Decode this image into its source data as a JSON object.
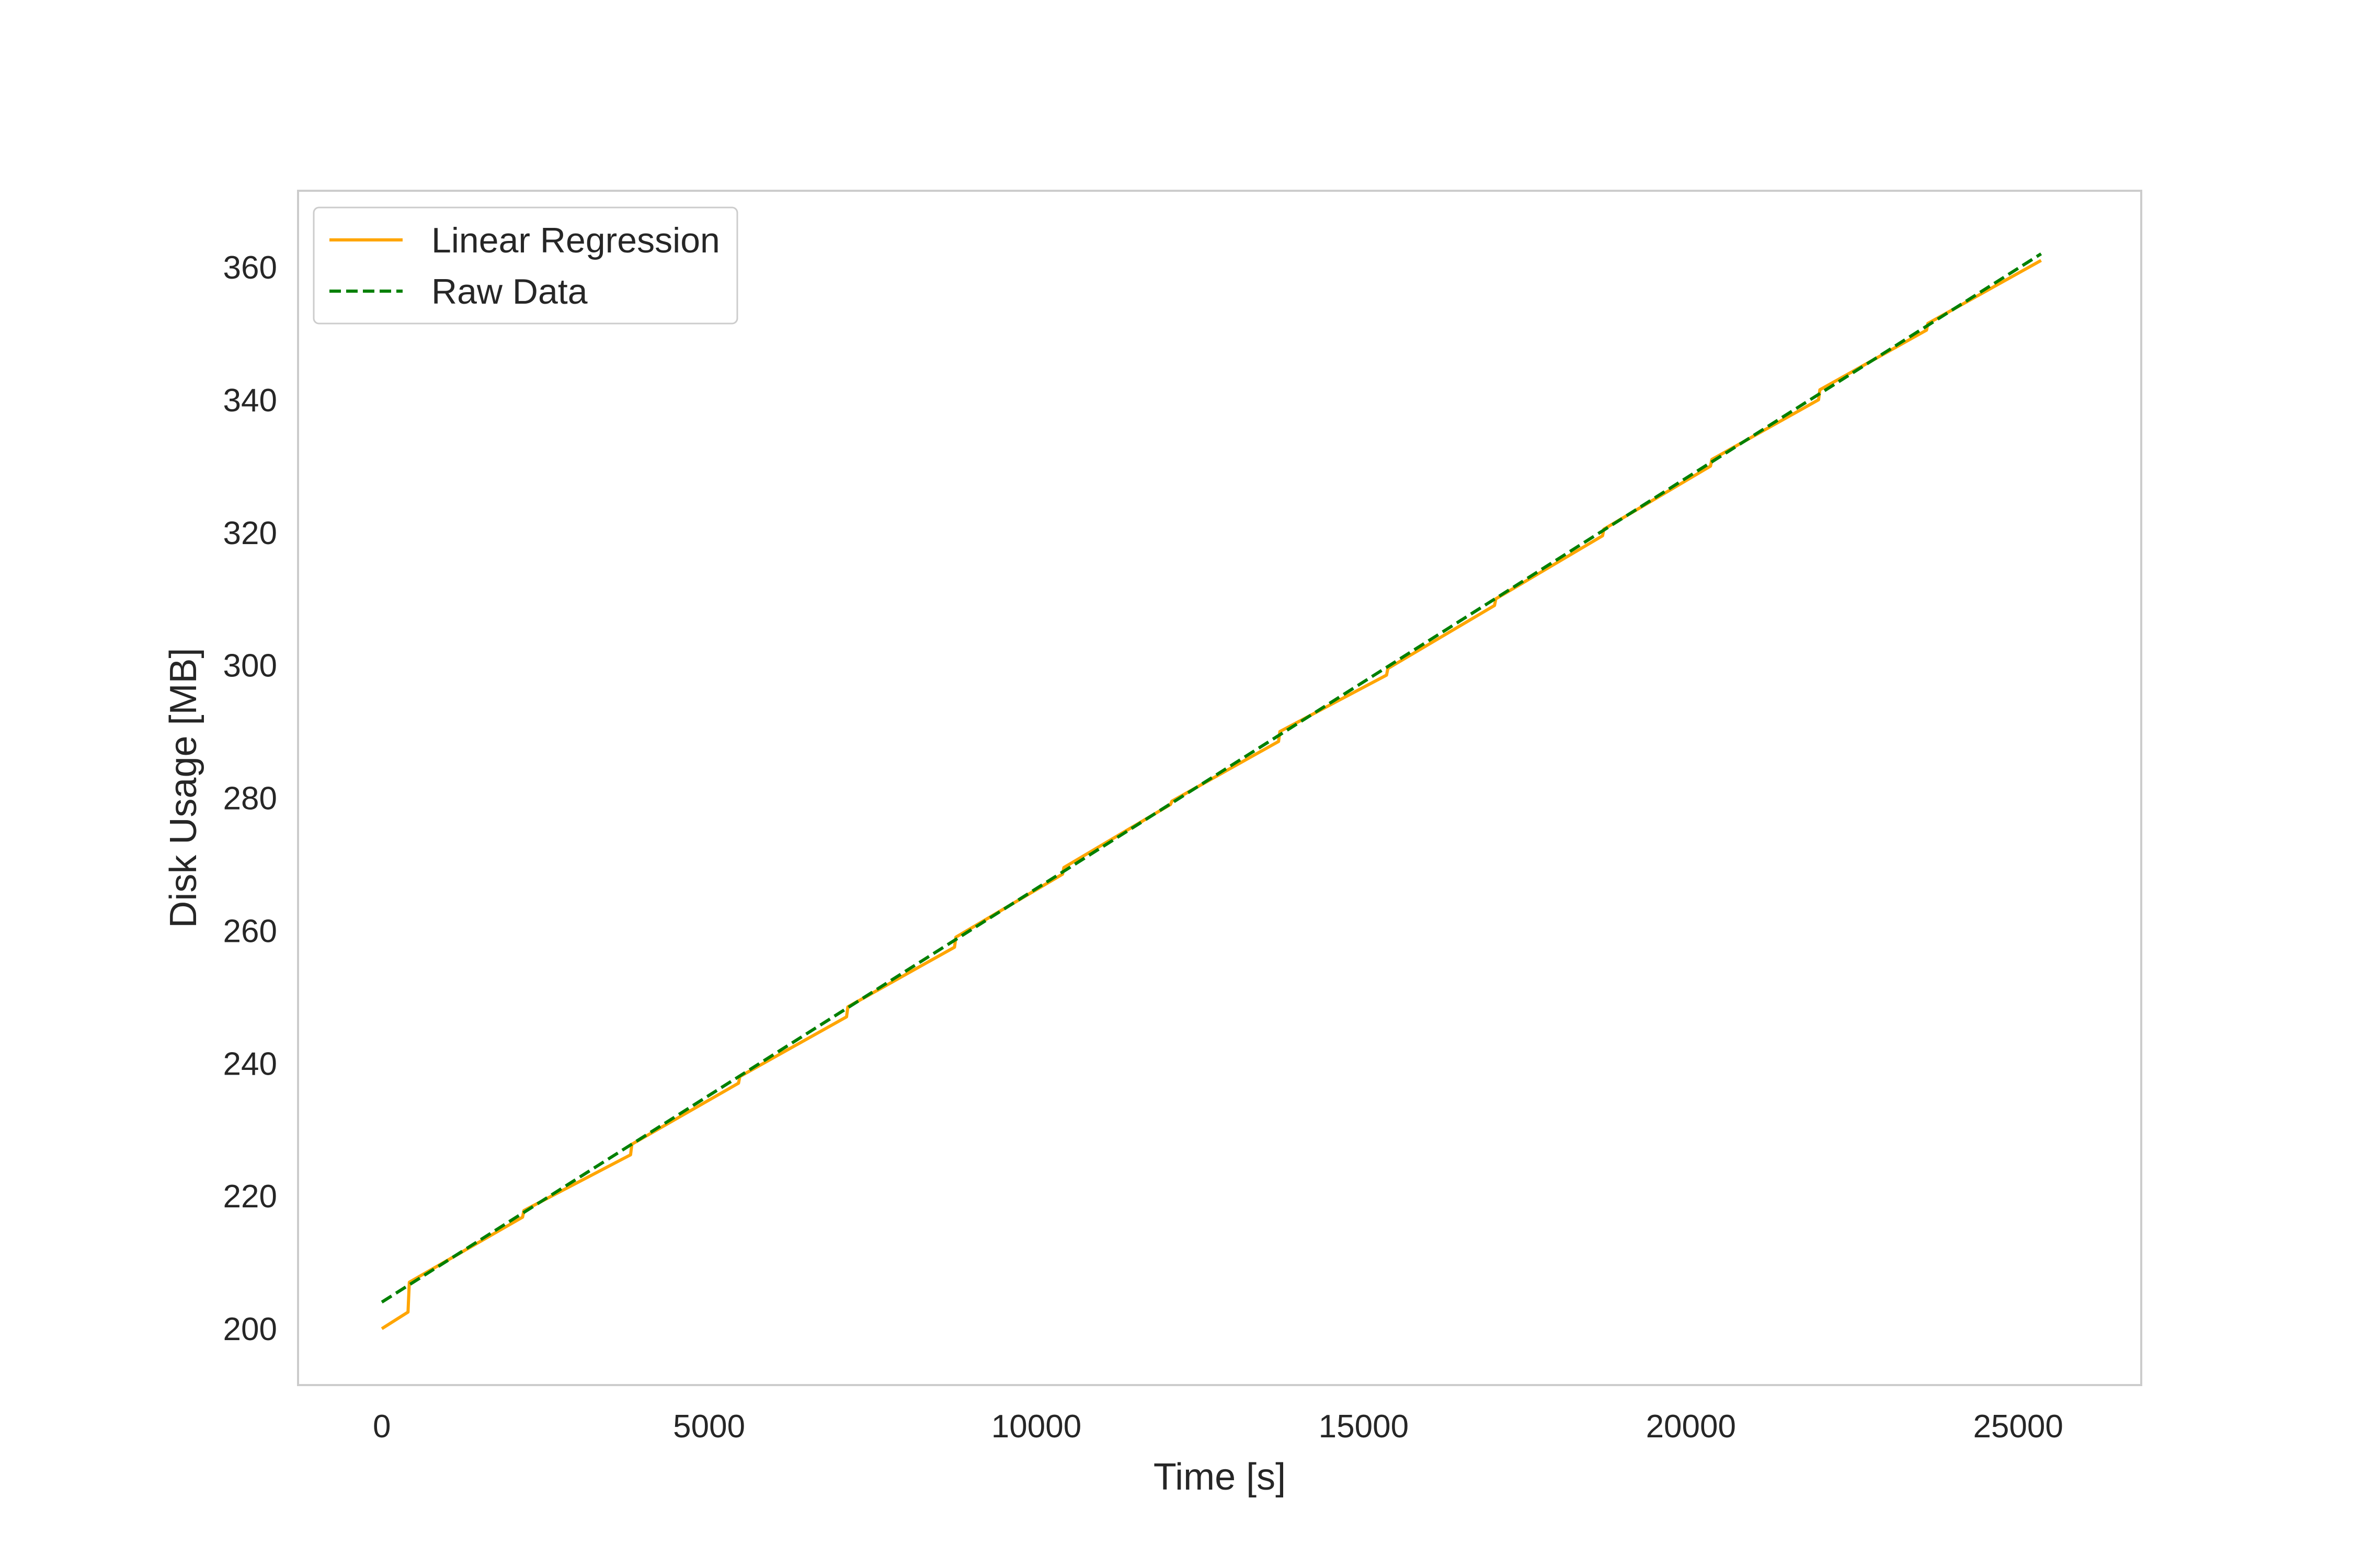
{
  "chart_data": {
    "type": "line",
    "title": "",
    "xlabel": "Time [s]",
    "ylabel": "Disk Usage [MB]",
    "xlim": [
      -1280,
      26880
    ],
    "ylim": [
      191.5,
      371.5
    ],
    "xticks": [
      0,
      5000,
      10000,
      15000,
      20000,
      25000
    ],
    "yticks": [
      200,
      220,
      240,
      260,
      280,
      300,
      320,
      340,
      360
    ],
    "xtick_labels": [
      "0",
      "5000",
      "10000",
      "15000",
      "20000",
      "25000"
    ],
    "ytick_labels": [
      "200",
      "220",
      "240",
      "260",
      "280",
      "300",
      "320",
      "340",
      "360"
    ],
    "grid": false,
    "legend_position": "upper left",
    "series": [
      {
        "name": "Linear Regression",
        "color": "#FFA500",
        "style": "solid",
        "x": [
          0,
          400,
          420,
          2150,
          2170,
          3800,
          3820,
          5450,
          5470,
          7100,
          7120,
          8750,
          8770,
          10400,
          10420,
          12050,
          12070,
          13700,
          13720,
          15350,
          15370,
          17000,
          17020,
          18650,
          18670,
          20300,
          20320,
          21950,
          21970,
          23600,
          23620,
          25350
        ],
        "y": [
          200.0,
          202.5,
          207.0,
          216.8,
          217.8,
          226.2,
          227.8,
          237.0,
          238.0,
          247.0,
          248.5,
          257.5,
          259.0,
          268.5,
          269.5,
          279.0,
          279.5,
          288.5,
          290.0,
          298.5,
          299.5,
          309.0,
          310.0,
          319.5,
          320.5,
          330.0,
          331.0,
          340.0,
          341.5,
          350.5,
          351.5,
          361.0
        ]
      },
      {
        "name": "Raw Data",
        "color": "#008000",
        "style": "dashed",
        "x": [
          0,
          25350
        ],
        "y": [
          204.0,
          362.0
        ]
      }
    ]
  }
}
